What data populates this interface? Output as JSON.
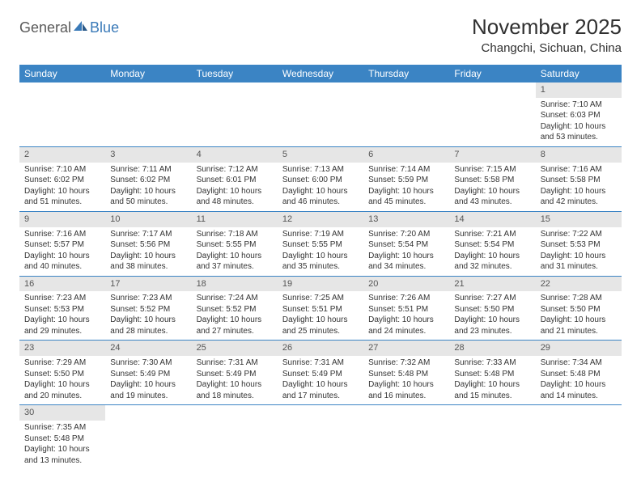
{
  "brand": {
    "part1": "General",
    "part2": "Blue"
  },
  "title": "November 2025",
  "location": "Changchi, Sichuan, China",
  "colors": {
    "header_bg": "#3b84c4",
    "header_text": "#ffffff",
    "daynum_bg": "#e6e6e6",
    "border": "#3b84c4",
    "text": "#333333",
    "brand_gray": "#5a5a5a",
    "brand_blue": "#3a7ab8"
  },
  "day_names": [
    "Sunday",
    "Monday",
    "Tuesday",
    "Wednesday",
    "Thursday",
    "Friday",
    "Saturday"
  ],
  "weeks": [
    [
      null,
      null,
      null,
      null,
      null,
      null,
      {
        "n": "1",
        "sr": "Sunrise: 7:10 AM",
        "ss": "Sunset: 6:03 PM",
        "dl": "Daylight: 10 hours and 53 minutes."
      }
    ],
    [
      {
        "n": "2",
        "sr": "Sunrise: 7:10 AM",
        "ss": "Sunset: 6:02 PM",
        "dl": "Daylight: 10 hours and 51 minutes."
      },
      {
        "n": "3",
        "sr": "Sunrise: 7:11 AM",
        "ss": "Sunset: 6:02 PM",
        "dl": "Daylight: 10 hours and 50 minutes."
      },
      {
        "n": "4",
        "sr": "Sunrise: 7:12 AM",
        "ss": "Sunset: 6:01 PM",
        "dl": "Daylight: 10 hours and 48 minutes."
      },
      {
        "n": "5",
        "sr": "Sunrise: 7:13 AM",
        "ss": "Sunset: 6:00 PM",
        "dl": "Daylight: 10 hours and 46 minutes."
      },
      {
        "n": "6",
        "sr": "Sunrise: 7:14 AM",
        "ss": "Sunset: 5:59 PM",
        "dl": "Daylight: 10 hours and 45 minutes."
      },
      {
        "n": "7",
        "sr": "Sunrise: 7:15 AM",
        "ss": "Sunset: 5:58 PM",
        "dl": "Daylight: 10 hours and 43 minutes."
      },
      {
        "n": "8",
        "sr": "Sunrise: 7:16 AM",
        "ss": "Sunset: 5:58 PM",
        "dl": "Daylight: 10 hours and 42 minutes."
      }
    ],
    [
      {
        "n": "9",
        "sr": "Sunrise: 7:16 AM",
        "ss": "Sunset: 5:57 PM",
        "dl": "Daylight: 10 hours and 40 minutes."
      },
      {
        "n": "10",
        "sr": "Sunrise: 7:17 AM",
        "ss": "Sunset: 5:56 PM",
        "dl": "Daylight: 10 hours and 38 minutes."
      },
      {
        "n": "11",
        "sr": "Sunrise: 7:18 AM",
        "ss": "Sunset: 5:55 PM",
        "dl": "Daylight: 10 hours and 37 minutes."
      },
      {
        "n": "12",
        "sr": "Sunrise: 7:19 AM",
        "ss": "Sunset: 5:55 PM",
        "dl": "Daylight: 10 hours and 35 minutes."
      },
      {
        "n": "13",
        "sr": "Sunrise: 7:20 AM",
        "ss": "Sunset: 5:54 PM",
        "dl": "Daylight: 10 hours and 34 minutes."
      },
      {
        "n": "14",
        "sr": "Sunrise: 7:21 AM",
        "ss": "Sunset: 5:54 PM",
        "dl": "Daylight: 10 hours and 32 minutes."
      },
      {
        "n": "15",
        "sr": "Sunrise: 7:22 AM",
        "ss": "Sunset: 5:53 PM",
        "dl": "Daylight: 10 hours and 31 minutes."
      }
    ],
    [
      {
        "n": "16",
        "sr": "Sunrise: 7:23 AM",
        "ss": "Sunset: 5:53 PM",
        "dl": "Daylight: 10 hours and 29 minutes."
      },
      {
        "n": "17",
        "sr": "Sunrise: 7:23 AM",
        "ss": "Sunset: 5:52 PM",
        "dl": "Daylight: 10 hours and 28 minutes."
      },
      {
        "n": "18",
        "sr": "Sunrise: 7:24 AM",
        "ss": "Sunset: 5:52 PM",
        "dl": "Daylight: 10 hours and 27 minutes."
      },
      {
        "n": "19",
        "sr": "Sunrise: 7:25 AM",
        "ss": "Sunset: 5:51 PM",
        "dl": "Daylight: 10 hours and 25 minutes."
      },
      {
        "n": "20",
        "sr": "Sunrise: 7:26 AM",
        "ss": "Sunset: 5:51 PM",
        "dl": "Daylight: 10 hours and 24 minutes."
      },
      {
        "n": "21",
        "sr": "Sunrise: 7:27 AM",
        "ss": "Sunset: 5:50 PM",
        "dl": "Daylight: 10 hours and 23 minutes."
      },
      {
        "n": "22",
        "sr": "Sunrise: 7:28 AM",
        "ss": "Sunset: 5:50 PM",
        "dl": "Daylight: 10 hours and 21 minutes."
      }
    ],
    [
      {
        "n": "23",
        "sr": "Sunrise: 7:29 AM",
        "ss": "Sunset: 5:50 PM",
        "dl": "Daylight: 10 hours and 20 minutes."
      },
      {
        "n": "24",
        "sr": "Sunrise: 7:30 AM",
        "ss": "Sunset: 5:49 PM",
        "dl": "Daylight: 10 hours and 19 minutes."
      },
      {
        "n": "25",
        "sr": "Sunrise: 7:31 AM",
        "ss": "Sunset: 5:49 PM",
        "dl": "Daylight: 10 hours and 18 minutes."
      },
      {
        "n": "26",
        "sr": "Sunrise: 7:31 AM",
        "ss": "Sunset: 5:49 PM",
        "dl": "Daylight: 10 hours and 17 minutes."
      },
      {
        "n": "27",
        "sr": "Sunrise: 7:32 AM",
        "ss": "Sunset: 5:48 PM",
        "dl": "Daylight: 10 hours and 16 minutes."
      },
      {
        "n": "28",
        "sr": "Sunrise: 7:33 AM",
        "ss": "Sunset: 5:48 PM",
        "dl": "Daylight: 10 hours and 15 minutes."
      },
      {
        "n": "29",
        "sr": "Sunrise: 7:34 AM",
        "ss": "Sunset: 5:48 PM",
        "dl": "Daylight: 10 hours and 14 minutes."
      }
    ],
    [
      {
        "n": "30",
        "sr": "Sunrise: 7:35 AM",
        "ss": "Sunset: 5:48 PM",
        "dl": "Daylight: 10 hours and 13 minutes."
      },
      null,
      null,
      null,
      null,
      null,
      null
    ]
  ]
}
